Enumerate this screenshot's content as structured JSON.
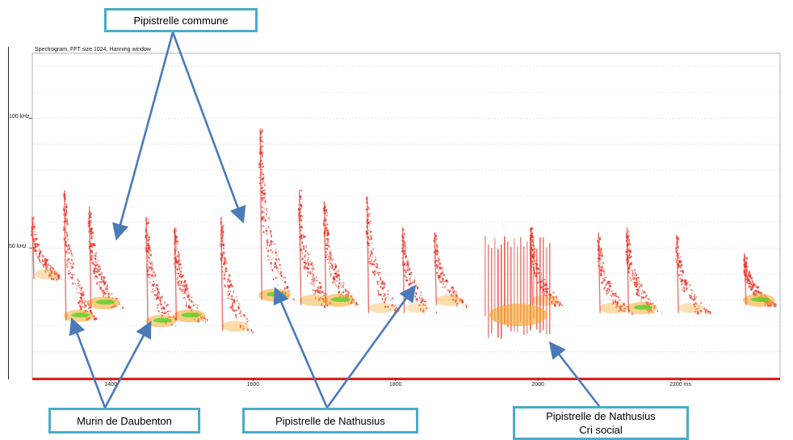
{
  "chart_data": {
    "type": "spectrogram",
    "title": "Spectrogram, FFT size 1024, Hanning window",
    "xlabel": "",
    "ylabel": "",
    "x_unit": "ms",
    "y_unit": "kHz",
    "xlim": [
      1290,
      2340
    ],
    "ylim": [
      0,
      125
    ],
    "x_ticks": [
      {
        "value": 1400,
        "label": "1400"
      },
      {
        "value": 1600,
        "label": "1600"
      },
      {
        "value": 1800,
        "label": "1800"
      },
      {
        "value": 2000,
        "label": "2000"
      },
      {
        "value": 2200,
        "label": "2200 ms"
      }
    ],
    "y_ticks": [
      {
        "value": 100,
        "label": "100 kHz"
      },
      {
        "value": 50,
        "label": "50 kHz"
      }
    ],
    "grid": true,
    "colors": {
      "low": "#e8362a",
      "mid": "#f6a321",
      "high": "#5fd22c",
      "axis_floor": "#d62424",
      "callout_border": "#4bacc6",
      "arrow": "#4a7ab8"
    },
    "calls": [
      {
        "t": 1290,
        "f_start": 62,
        "f_end": 38,
        "intensity": 0.6
      },
      {
        "t": 1335,
        "f_start": 72,
        "f_end": 22,
        "intensity": 0.9
      },
      {
        "t": 1370,
        "f_start": 66,
        "f_end": 27,
        "intensity": 1.0
      },
      {
        "t": 1450,
        "f_start": 62,
        "f_end": 20,
        "intensity": 0.9
      },
      {
        "t": 1490,
        "f_start": 58,
        "f_end": 22,
        "intensity": 1.0
      },
      {
        "t": 1555,
        "f_start": 62,
        "f_end": 18,
        "intensity": 0.7
      },
      {
        "t": 1610,
        "f_start": 96,
        "f_end": 30,
        "intensity": 1.0
      },
      {
        "t": 1665,
        "f_start": 72,
        "f_end": 28,
        "intensity": 0.8
      },
      {
        "t": 1700,
        "f_start": 68,
        "f_end": 28,
        "intensity": 1.0
      },
      {
        "t": 1760,
        "f_start": 70,
        "f_end": 25,
        "intensity": 0.6
      },
      {
        "t": 1810,
        "f_start": 58,
        "f_end": 25,
        "intensity": 0.5
      },
      {
        "t": 1855,
        "f_start": 56,
        "f_end": 28,
        "intensity": 0.7
      },
      {
        "t": 1990,
        "f_start": 58,
        "f_end": 28,
        "intensity": 0.7
      },
      {
        "t": 2085,
        "f_start": 56,
        "f_end": 25,
        "intensity": 0.7
      },
      {
        "t": 2125,
        "f_start": 58,
        "f_end": 25,
        "intensity": 0.9
      },
      {
        "t": 2195,
        "f_start": 55,
        "f_end": 25,
        "intensity": 0.6
      },
      {
        "t": 2290,
        "f_start": 48,
        "f_end": 28,
        "intensity": 1.0
      }
    ],
    "social_call": {
      "t_start": 1925,
      "t_end": 2020,
      "f_low": 18,
      "f_high": 55
    }
  },
  "callouts": [
    {
      "key": "pip-commune",
      "line1": "Pipistrelle commune",
      "line2": ""
    },
    {
      "key": "murin",
      "line1": "Murin de Daubenton",
      "line2": ""
    },
    {
      "key": "nathusius",
      "line1": "Pipistrelle de Nathusius",
      "line2": ""
    },
    {
      "key": "nathusius-social",
      "line1": "Pipistrelle de Nathusius",
      "line2": "Cri social"
    }
  ]
}
